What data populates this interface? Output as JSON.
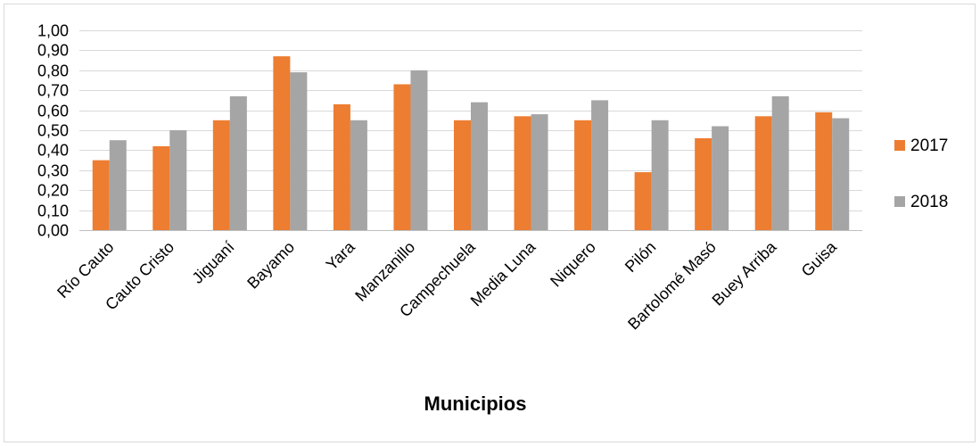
{
  "chart_data": {
    "type": "bar",
    "title": "",
    "xlabel": "Municipios",
    "ylabel": "",
    "ylim": [
      0,
      1
    ],
    "ytick_step": 0.1,
    "ytick_labels": [
      "0,00",
      "0,10",
      "0,20",
      "0,30",
      "0,40",
      "0,50",
      "0,60",
      "0,70",
      "0,80",
      "0,90",
      "1,00"
    ],
    "grid": true,
    "legend_position": "right",
    "categories": [
      "Río Cauto",
      "Cauto Cristo",
      "Jiguaní",
      "Bayamo",
      "Yara",
      "Manzanillo",
      "Campechuela",
      "Media Luna",
      "Niquero",
      "Pilón",
      "Bartolomé Masó",
      "Buey Arriba",
      "Guisa"
    ],
    "series": [
      {
        "name": "2017",
        "color": "#ed7d31",
        "values": [
          0.35,
          0.42,
          0.55,
          0.87,
          0.63,
          0.73,
          0.55,
          0.57,
          0.55,
          0.29,
          0.46,
          0.57,
          0.59
        ]
      },
      {
        "name": "2018",
        "color": "#a5a5a5",
        "values": [
          0.45,
          0.5,
          0.67,
          0.79,
          0.55,
          0.8,
          0.64,
          0.58,
          0.65,
          0.55,
          0.52,
          0.67,
          0.56
        ]
      }
    ]
  }
}
